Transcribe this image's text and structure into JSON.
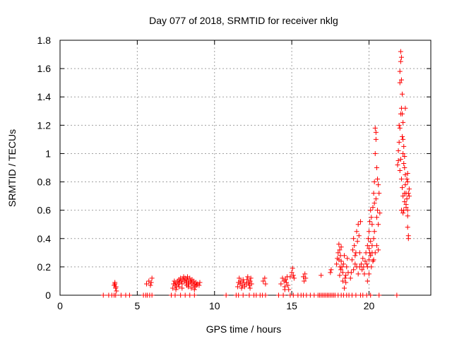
{
  "chart_data": {
    "type": "scatter",
    "title": "Day 077 of 2018, SRMTID for receiver nklg",
    "xlabel": "GPS time / hours",
    "ylabel": "SRMTID / TECUs",
    "xlim": [
      0,
      24
    ],
    "ylim": [
      0,
      1.8
    ],
    "xticks": [
      0,
      5,
      10,
      15,
      20
    ],
    "yticks": [
      0,
      0.2,
      0.4,
      0.6,
      0.8,
      1,
      1.2,
      1.4,
      1.6,
      1.8
    ],
    "ytick_labels": [
      "0",
      "0.2",
      "0.4",
      "0.6",
      "0.8",
      "1",
      "1.2",
      "1.4",
      "1.6",
      "1.8"
    ],
    "grid": true,
    "marker": "+",
    "color": "#ff0000",
    "series": [
      {
        "name": "SRMTID",
        "points": [
          [
            2.8,
            0
          ],
          [
            3.15,
            0
          ],
          [
            3.35,
            0
          ],
          [
            3.5,
            0
          ],
          [
            3.6,
            0
          ],
          [
            3.95,
            0
          ],
          [
            4.25,
            0
          ],
          [
            4.5,
            0
          ],
          [
            3.5,
            0.07
          ],
          [
            3.55,
            0.09
          ],
          [
            3.6,
            0.05
          ],
          [
            3.65,
            0.03
          ],
          [
            3.55,
            0.08
          ],
          [
            3.62,
            0.06
          ],
          [
            5.4,
            0
          ],
          [
            5.55,
            0
          ],
          [
            5.65,
            0
          ],
          [
            5.8,
            0
          ],
          [
            5.95,
            0
          ],
          [
            5.6,
            0.08
          ],
          [
            5.75,
            0.1
          ],
          [
            5.85,
            0.07
          ],
          [
            5.95,
            0.12
          ],
          [
            5.9,
            0.09
          ],
          [
            7.2,
            0
          ],
          [
            7.45,
            0
          ],
          [
            7.8,
            0
          ],
          [
            8.1,
            0
          ],
          [
            8.4,
            0
          ],
          [
            8.7,
            0
          ],
          [
            7.3,
            0.05
          ],
          [
            7.35,
            0.08
          ],
          [
            7.4,
            0.1
          ],
          [
            7.45,
            0.07
          ],
          [
            7.5,
            0.09
          ],
          [
            7.55,
            0.06
          ],
          [
            7.6,
            0.1
          ],
          [
            7.65,
            0.08
          ],
          [
            7.7,
            0.11
          ],
          [
            7.75,
            0.09
          ],
          [
            7.8,
            0.12
          ],
          [
            7.85,
            0.1
          ],
          [
            7.9,
            0.08
          ],
          [
            7.95,
            0.11
          ],
          [
            8.0,
            0.13
          ],
          [
            8.05,
            0.1
          ],
          [
            8.1,
            0.12
          ],
          [
            8.15,
            0.09
          ],
          [
            8.2,
            0.11
          ],
          [
            8.25,
            0.13
          ],
          [
            8.3,
            0.1
          ],
          [
            8.35,
            0.08
          ],
          [
            8.4,
            0.12
          ],
          [
            8.45,
            0.1
          ],
          [
            8.5,
            0.09
          ],
          [
            8.55,
            0.11
          ],
          [
            8.6,
            0.07
          ],
          [
            8.65,
            0.1
          ],
          [
            8.7,
            0.08
          ],
          [
            8.75,
            0.06
          ],
          [
            8.8,
            0.09
          ],
          [
            8.85,
            0.07
          ],
          [
            8.9,
            0.08
          ],
          [
            7.5,
            0.04
          ],
          [
            7.7,
            0.06
          ],
          [
            7.9,
            0.05
          ],
          [
            8.2,
            0.07
          ],
          [
            8.5,
            0.05
          ],
          [
            8.7,
            0.04
          ],
          [
            8.3,
            0.06
          ],
          [
            9.0,
            0.07
          ],
          [
            9.05,
            0.09
          ],
          [
            10.75,
            0
          ],
          [
            11.4,
            0
          ],
          [
            11.55,
            0
          ],
          [
            11.85,
            0
          ],
          [
            12.25,
            0
          ],
          [
            12.55,
            0
          ],
          [
            12.7,
            0
          ],
          [
            12.95,
            0
          ],
          [
            13.1,
            0
          ],
          [
            13.3,
            0
          ],
          [
            11.5,
            0.06
          ],
          [
            11.55,
            0.09
          ],
          [
            11.6,
            0.12
          ],
          [
            11.65,
            0.08
          ],
          [
            11.7,
            0.1
          ],
          [
            11.75,
            0.05
          ],
          [
            11.8,
            0.07
          ],
          [
            11.85,
            0.11
          ],
          [
            11.9,
            0.09
          ],
          [
            11.95,
            0.06
          ],
          [
            12.05,
            0.08
          ],
          [
            12.1,
            0.11
          ],
          [
            12.15,
            0.13
          ],
          [
            12.2,
            0.09
          ],
          [
            12.25,
            0.07
          ],
          [
            12.3,
            0.1
          ],
          [
            12.35,
            0.12
          ],
          [
            12.4,
            0.08
          ],
          [
            12.3,
            0.05
          ],
          [
            13.15,
            0.1
          ],
          [
            13.25,
            0.12
          ],
          [
            13.3,
            0.08
          ],
          [
            14.15,
            0
          ],
          [
            14.45,
            0
          ],
          [
            14.9,
            0
          ],
          [
            15.1,
            0
          ],
          [
            15.4,
            0
          ],
          [
            15.6,
            0
          ],
          [
            15.75,
            0
          ],
          [
            15.95,
            0
          ],
          [
            14.3,
            0.08
          ],
          [
            14.4,
            0.12
          ],
          [
            14.5,
            0.1
          ],
          [
            14.55,
            0.06
          ],
          [
            14.6,
            0.11
          ],
          [
            14.65,
            0.09
          ],
          [
            14.7,
            0.13
          ],
          [
            14.75,
            0.07
          ],
          [
            14.8,
            0.04
          ],
          [
            14.55,
            0.04
          ],
          [
            14.9,
            0.13
          ],
          [
            15.0,
            0.16
          ],
          [
            15.05,
            0.19
          ],
          [
            15.1,
            0.14
          ],
          [
            15.15,
            0.12
          ],
          [
            15.75,
            0.13
          ],
          [
            15.85,
            0.15
          ],
          [
            15.9,
            0.12
          ],
          [
            15.8,
            0.1
          ],
          [
            16.2,
            0
          ],
          [
            16.45,
            0
          ],
          [
            16.7,
            0
          ],
          [
            16.8,
            0
          ],
          [
            16.9,
            0
          ],
          [
            17.0,
            0
          ],
          [
            17.1,
            0
          ],
          [
            17.2,
            0
          ],
          [
            17.3,
            0
          ],
          [
            17.4,
            0
          ],
          [
            17.5,
            0
          ],
          [
            17.6,
            0
          ],
          [
            17.7,
            0
          ],
          [
            17.8,
            0
          ],
          [
            16.9,
            0.14
          ],
          [
            17.5,
            0.16
          ],
          [
            17.55,
            0.18
          ],
          [
            18.0,
            0
          ],
          [
            18.2,
            0
          ],
          [
            18.35,
            0
          ],
          [
            18.55,
            0
          ],
          [
            18.7,
            0
          ],
          [
            18.9,
            0
          ],
          [
            19.15,
            0
          ],
          [
            19.45,
            0
          ],
          [
            19.6,
            0
          ],
          [
            19.85,
            0
          ],
          [
            20.1,
            0
          ],
          [
            20.65,
            0
          ],
          [
            21.8,
            0
          ],
          [
            17.9,
            0.22
          ],
          [
            17.95,
            0.26
          ],
          [
            18.0,
            0.3
          ],
          [
            18.05,
            0.36
          ],
          [
            18.1,
            0.32
          ],
          [
            18.15,
            0.28
          ],
          [
            18.2,
            0.34
          ],
          [
            18.05,
            0.25
          ],
          [
            18.12,
            0.2
          ],
          [
            18.18,
            0.18
          ],
          [
            18.2,
            0.24
          ],
          [
            18.25,
            0.2
          ],
          [
            18.3,
            0.16
          ],
          [
            18.35,
            0.22
          ],
          [
            18.4,
            0.28
          ],
          [
            18.45,
            0.12
          ],
          [
            18.5,
            0.09
          ],
          [
            18.55,
            0.2
          ],
          [
            18.6,
            0.26
          ],
          [
            18.65,
            0.16
          ],
          [
            18.3,
            0.1
          ],
          [
            18.4,
            0.05
          ],
          [
            18.5,
            0.14
          ],
          [
            18.1,
            0.14
          ],
          [
            18.8,
            0.12
          ],
          [
            18.85,
            0.16
          ],
          [
            18.9,
            0.25
          ],
          [
            18.95,
            0.32
          ],
          [
            19.0,
            0.4
          ],
          [
            19.05,
            0.35
          ],
          [
            19.1,
            0.28
          ],
          [
            19.15,
            0.3
          ],
          [
            19.2,
            0.45
          ],
          [
            19.25,
            0.38
          ],
          [
            19.3,
            0.5
          ],
          [
            19.35,
            0.42
          ],
          [
            19.4,
            0.3
          ],
          [
            19.45,
            0.52
          ],
          [
            19.5,
            0.22
          ],
          [
            19.55,
            0.18
          ],
          [
            19.6,
            0.26
          ],
          [
            19.65,
            0.2
          ],
          [
            19.7,
            0.15
          ],
          [
            19.75,
            0.24
          ],
          [
            19.2,
            0.2
          ],
          [
            19.3,
            0.15
          ],
          [
            19.4,
            0.2
          ],
          [
            19.0,
            0.18
          ],
          [
            19.1,
            0.22
          ],
          [
            19.8,
            0.3
          ],
          [
            19.85,
            0.22
          ],
          [
            19.9,
            0.35
          ],
          [
            19.95,
            0.4
          ],
          [
            20.0,
            0.45
          ],
          [
            20.05,
            0.52
          ],
          [
            20.1,
            0.6
          ],
          [
            20.15,
            0.55
          ],
          [
            20.2,
            0.5
          ],
          [
            20.25,
            0.62
          ],
          [
            20.3,
            0.72
          ],
          [
            20.35,
            0.8
          ],
          [
            20.4,
            1.0
          ],
          [
            20.45,
            1.15
          ],
          [
            20.4,
            1.18
          ],
          [
            20.45,
            1.1
          ],
          [
            20.5,
            0.9
          ],
          [
            20.55,
            0.82
          ],
          [
            20.6,
            0.78
          ],
          [
            20.65,
            0.72
          ],
          [
            19.9,
            0.2
          ],
          [
            20.0,
            0.25
          ],
          [
            20.05,
            0.3
          ],
          [
            20.1,
            0.28
          ],
          [
            20.2,
            0.35
          ],
          [
            20.3,
            0.4
          ],
          [
            20.35,
            0.45
          ],
          [
            20.5,
            0.55
          ],
          [
            20.6,
            0.5
          ],
          [
            20.7,
            0.58
          ],
          [
            19.9,
            0.1
          ],
          [
            20.0,
            0.15
          ],
          [
            20.15,
            0.2
          ],
          [
            20.25,
            0.24
          ],
          [
            20.4,
            0.3
          ],
          [
            20.5,
            0.35
          ],
          [
            20.6,
            0.32
          ],
          [
            20.55,
            0.6
          ],
          [
            20.35,
            0.65
          ],
          [
            20.45,
            0.68
          ],
          [
            20.0,
            0.33
          ],
          [
            20.1,
            0.38
          ],
          [
            20.2,
            0.3
          ],
          [
            20.3,
            0.25
          ],
          [
            21.85,
            0.92
          ],
          [
            21.9,
            1.02
          ],
          [
            21.95,
            1.2
          ],
          [
            22.0,
            1.5
          ],
          [
            22.0,
            1.58
          ],
          [
            22.05,
            1.72
          ],
          [
            22.05,
            1.65
          ],
          [
            22.1,
            1.68
          ],
          [
            22.1,
            1.52
          ],
          [
            22.15,
            1.42
          ],
          [
            22.1,
            1.32
          ],
          [
            22.15,
            1.28
          ],
          [
            22.2,
            1.22
          ],
          [
            22.2,
            1.1
          ],
          [
            22.25,
            1.05
          ],
          [
            22.3,
            0.98
          ],
          [
            22.3,
            0.9
          ],
          [
            22.35,
            0.85
          ],
          [
            22.35,
            0.78
          ],
          [
            22.4,
            0.72
          ],
          [
            22.45,
            0.68
          ],
          [
            22.5,
            0.6
          ],
          [
            22.5,
            0.56
          ],
          [
            22.5,
            0.48
          ],
          [
            22.55,
            0.42
          ],
          [
            22.55,
            0.4
          ],
          [
            22.6,
            0.7
          ],
          [
            22.6,
            0.75
          ],
          [
            22.5,
            0.8
          ],
          [
            22.4,
            0.62
          ],
          [
            21.9,
            0.95
          ],
          [
            22.0,
            0.88
          ],
          [
            22.05,
            0.96
          ],
          [
            22.1,
            0.82
          ],
          [
            22.15,
            0.76
          ],
          [
            22.2,
            0.7
          ],
          [
            22.25,
            0.6
          ],
          [
            22.3,
            0.66
          ],
          [
            22.35,
            1.32
          ],
          [
            22.0,
            1.18
          ],
          [
            22.05,
            1.28
          ],
          [
            22.15,
            1.12
          ],
          [
            22.2,
            1.0
          ],
          [
            22.25,
            0.93
          ],
          [
            22.1,
            0.6
          ],
          [
            22.2,
            0.58
          ],
          [
            22.3,
            0.72
          ],
          [
            22.4,
            0.64
          ],
          [
            22.45,
            0.82
          ],
          [
            21.95,
            1.08
          ],
          [
            22.5,
            0.86
          ],
          [
            22.55,
            0.72
          ]
        ]
      }
    ]
  }
}
